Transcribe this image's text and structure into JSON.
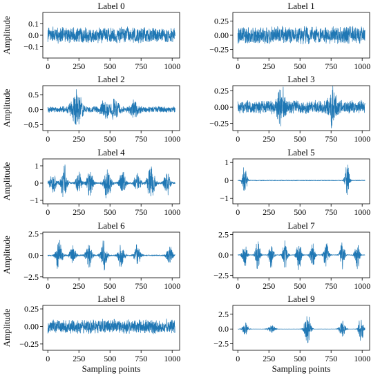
{
  "style": {
    "series_color": "#1f77b4"
  },
  "chart_data": [
    {
      "type": "line",
      "title": "Label 0",
      "ylabel": "Amplitude",
      "xlabel": "",
      "xlim": [
        -40,
        1060
      ],
      "ylim": [
        -0.2,
        0.2
      ],
      "xticks": [
        0,
        250,
        500,
        750,
        1000
      ],
      "yticks": [
        -0.1,
        0.0,
        0.1
      ],
      "ytick_labels": [
        "−0.1",
        "0.0",
        "0.1"
      ],
      "pattern": "continuous",
      "noise": 0.08,
      "bursts": []
    },
    {
      "type": "line",
      "title": "Label 1",
      "ylabel": "",
      "xlabel": "",
      "xlim": [
        -40,
        1060
      ],
      "ylim": [
        -0.4,
        0.4
      ],
      "xticks": [
        0,
        250,
        500,
        750,
        1000
      ],
      "yticks": [
        -0.25,
        0.0,
        0.25
      ],
      "ytick_labels": [
        "−0.25",
        "0.00",
        "0.25"
      ],
      "pattern": "continuous",
      "noise": 0.18,
      "bursts": []
    },
    {
      "type": "line",
      "title": "Label 2",
      "ylabel": "Amplitude",
      "xlabel": "",
      "xlim": [
        -40,
        1060
      ],
      "ylim": [
        -0.7,
        0.8
      ],
      "xticks": [
        0,
        250,
        500,
        750,
        1000
      ],
      "yticks": [
        -0.5,
        0.0,
        0.5
      ],
      "ytick_labels": [
        "−0.5",
        "0.0",
        "0.5"
      ],
      "pattern": "continuous",
      "noise": 0.12,
      "bursts": [
        {
          "center": 230,
          "width": 40,
          "amp": 0.75
        },
        {
          "center": 460,
          "width": 35,
          "amp": 0.35
        },
        {
          "center": 540,
          "width": 30,
          "amp": 0.35
        },
        {
          "center": 700,
          "width": 35,
          "amp": 0.3
        }
      ]
    },
    {
      "type": "line",
      "title": "Label 3",
      "ylabel": "",
      "xlabel": "",
      "xlim": [
        -40,
        1060
      ],
      "ylim": [
        -0.36,
        0.33
      ],
      "xticks": [
        0,
        250,
        500,
        750,
        1000
      ],
      "yticks": [
        -0.25,
        0.0,
        0.25
      ],
      "ytick_labels": [
        "−0.25",
        "0.00",
        "0.25"
      ],
      "pattern": "continuous",
      "noise": 0.12,
      "bursts": [
        {
          "center": 350,
          "width": 30,
          "amp": 0.3
        },
        {
          "center": 760,
          "width": 30,
          "amp": 0.3
        }
      ]
    },
    {
      "type": "line",
      "title": "Label 4",
      "ylabel": "Amplitude",
      "xlabel": "",
      "xlim": [
        -40,
        1060
      ],
      "ylim": [
        -1.2,
        1.4
      ],
      "xticks": [
        0,
        250,
        500,
        750,
        1000
      ],
      "yticks": [
        -1,
        0,
        1
      ],
      "ytick_labels": [
        "−1",
        "0",
        "1"
      ],
      "pattern": "bursty",
      "noise": 0.15,
      "bursts": [
        {
          "center": 40,
          "width": 25,
          "amp": 0.8
        },
        {
          "center": 130,
          "width": 25,
          "amp": 1.2
        },
        {
          "center": 250,
          "width": 25,
          "amp": 0.8
        },
        {
          "center": 340,
          "width": 25,
          "amp": 1.0
        },
        {
          "center": 480,
          "width": 30,
          "amp": 1.1
        },
        {
          "center": 600,
          "width": 25,
          "amp": 0.9
        },
        {
          "center": 720,
          "width": 25,
          "amp": 0.8
        },
        {
          "center": 830,
          "width": 30,
          "amp": 1.2
        },
        {
          "center": 960,
          "width": 25,
          "amp": 0.8
        }
      ]
    },
    {
      "type": "line",
      "title": "Label 5",
      "ylabel": "",
      "xlabel": "",
      "xlim": [
        -40,
        1060
      ],
      "ylim": [
        -1.3,
        1.2
      ],
      "xticks": [
        0,
        250,
        500,
        750,
        1000
      ],
      "yticks": [
        -1,
        0,
        1
      ],
      "ytick_labels": [
        "−1",
        "0",
        "1"
      ],
      "pattern": "bursty",
      "noise": 0.07,
      "bursts": [
        {
          "center": 55,
          "width": 18,
          "amp": 1.1
        },
        {
          "center": 880,
          "width": 18,
          "amp": 1.1
        }
      ]
    },
    {
      "type": "line",
      "title": "Label 6",
      "ylabel": "Amplitude",
      "xlabel": "",
      "xlim": [
        -40,
        1060
      ],
      "ylim": [
        -2.6,
        2.7
      ],
      "xticks": [
        0,
        250,
        500,
        750,
        1000
      ],
      "yticks": [
        -2.5,
        0.0,
        2.5
      ],
      "ytick_labels": [
        "−2.5",
        "0.0",
        "2.5"
      ],
      "pattern": "bursty",
      "noise": 0.25,
      "bursts": [
        {
          "center": 90,
          "width": 25,
          "amp": 2.3
        },
        {
          "center": 200,
          "width": 25,
          "amp": 1.4
        },
        {
          "center": 330,
          "width": 25,
          "amp": 1.6
        },
        {
          "center": 450,
          "width": 25,
          "amp": 2.2
        },
        {
          "center": 590,
          "width": 25,
          "amp": 1.6
        },
        {
          "center": 720,
          "width": 25,
          "amp": 1.5
        },
        {
          "center": 980,
          "width": 25,
          "amp": 1.3
        }
      ]
    },
    {
      "type": "line",
      "title": "Label 7",
      "ylabel": "",
      "xlabel": "",
      "xlim": [
        -40,
        1060
      ],
      "ylim": [
        -2.8,
        2.8
      ],
      "xticks": [
        0,
        250,
        500,
        750,
        1000
      ],
      "yticks": [
        -2.5,
        0.0,
        2.5
      ],
      "ytick_labels": [
        "−2.5",
        "0.0",
        "2.5"
      ],
      "pattern": "bursty",
      "noise": 0.12,
      "bursts": [
        {
          "center": 55,
          "width": 20,
          "amp": 1.8
        },
        {
          "center": 160,
          "width": 20,
          "amp": 2.2
        },
        {
          "center": 270,
          "width": 20,
          "amp": 2.0
        },
        {
          "center": 380,
          "width": 20,
          "amp": 2.2
        },
        {
          "center": 490,
          "width": 20,
          "amp": 2.4
        },
        {
          "center": 600,
          "width": 20,
          "amp": 2.0
        },
        {
          "center": 710,
          "width": 20,
          "amp": 2.1
        },
        {
          "center": 840,
          "width": 20,
          "amp": 1.9
        },
        {
          "center": 960,
          "width": 20,
          "amp": 2.0
        }
      ]
    },
    {
      "type": "line",
      "title": "Label 8",
      "ylabel": "Amplitude",
      "xlabel": "Sampling points",
      "xlim": [
        -40,
        1060
      ],
      "ylim": [
        -0.34,
        0.3
      ],
      "xticks": [
        0,
        250,
        500,
        750,
        1000
      ],
      "yticks": [
        -0.25,
        0.0,
        0.25
      ],
      "ytick_labels": [
        "−0.25",
        "0.00",
        "0.25"
      ],
      "pattern": "continuous",
      "noise": 0.12,
      "bursts": []
    },
    {
      "type": "line",
      "title": "Label 9",
      "ylabel": "",
      "xlabel": "Sampling points",
      "xlim": [
        -40,
        1060
      ],
      "ylim": [
        -3.6,
        4.0
      ],
      "xticks": [
        0,
        250,
        500,
        750,
        1000
      ],
      "yticks": [
        -2.5,
        0.0,
        2.5
      ],
      "ytick_labels": [
        "−2.5",
        "0.0",
        "2.5"
      ],
      "pattern": "bursty",
      "noise": 0.06,
      "bursts": [
        {
          "center": 60,
          "width": 25,
          "amp": 1.2
        },
        {
          "center": 270,
          "width": 30,
          "amp": 0.8
        },
        {
          "center": 560,
          "width": 25,
          "amp": 3.6
        },
        {
          "center": 840,
          "width": 25,
          "amp": 1.6
        },
        {
          "center": 990,
          "width": 20,
          "amp": 2.8
        }
      ]
    }
  ]
}
